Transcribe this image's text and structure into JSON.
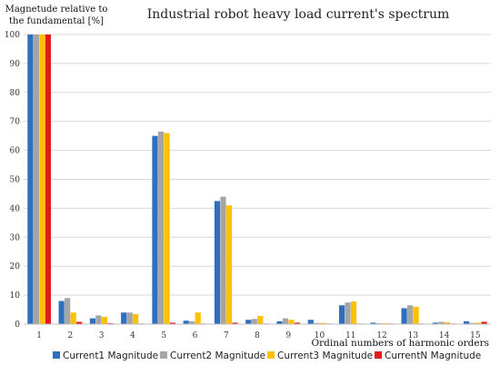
{
  "chart_data": {
    "type": "bar",
    "title": "Industrial robot heavy load current's spectrum",
    "ylabel_line1": "Magnetude relative to",
    "ylabel_line2": "the fundamental [%]",
    "xlabel": "Ordinal numbers of harmonic orders",
    "ylim": [
      0,
      100
    ],
    "yticks": [
      0,
      10,
      20,
      30,
      40,
      50,
      60,
      70,
      80,
      90,
      100
    ],
    "grid": true,
    "legend_position": "bottom",
    "categories": [
      "1",
      "2",
      "3",
      "4",
      "5",
      "6",
      "7",
      "8",
      "9",
      "10",
      "11",
      "12",
      "13",
      "14",
      "15"
    ],
    "series": [
      {
        "name": "Current1 Magnitude",
        "color": "#2f6fbf",
        "values": [
          100,
          8,
          2,
          4,
          65,
          1.2,
          42.5,
          1.5,
          1,
          1.5,
          6.5,
          0.5,
          5.5,
          0.5,
          1
        ]
      },
      {
        "name": "Current2 Magnitude",
        "color": "#a5a5a5",
        "values": [
          100,
          9,
          3,
          4,
          66.5,
          1,
          44,
          1.8,
          2,
          0.4,
          7.5,
          0.3,
          6.5,
          0.8,
          0.4
        ]
      },
      {
        "name": "Current3 Magnitude",
        "color": "#ffc000",
        "values": [
          100,
          4,
          2.5,
          3.5,
          66,
          4,
          41,
          2.8,
          1.5,
          0.4,
          7.8,
          0.3,
          6,
          0.6,
          0.5
        ]
      },
      {
        "name": "CurrentN Magnitude",
        "color": "#e31a1c",
        "values": [
          100,
          0.8,
          0.3,
          0.2,
          0.5,
          0.2,
          0.5,
          0.2,
          0.5,
          0.2,
          0.2,
          0.2,
          0.2,
          0.2,
          0.8
        ]
      }
    ]
  }
}
